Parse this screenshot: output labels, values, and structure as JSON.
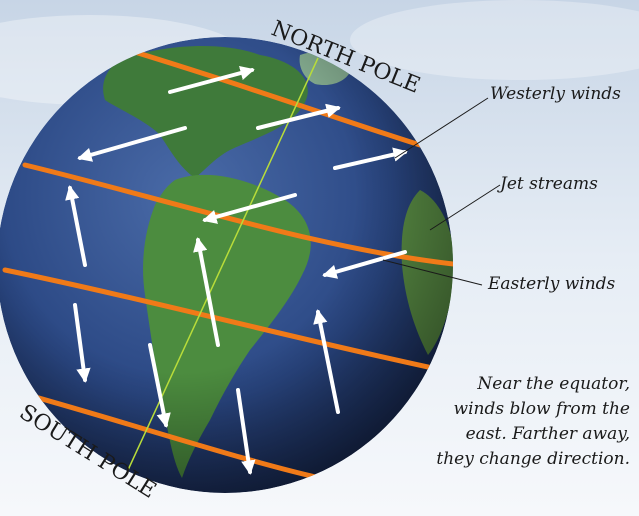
{
  "labels": {
    "north_pole": "NORTH POLE",
    "south_pole": "SOUTH POLE",
    "westerly": "Westerly winds",
    "jet": "Jet streams",
    "easterly": "Easterly winds"
  },
  "caption": {
    "line1": "Near the equator,",
    "line2": "winds blow from the",
    "line3": "east. Farther away,",
    "line4": "they change direction."
  },
  "colors": {
    "ocean": "#2c4a86",
    "land": "#3f7a3a",
    "jet_stream": "#f07a18",
    "wind_arrow": "#ffffff",
    "axis": "#b8dc3a",
    "sky": "#dfe8f1"
  },
  "icons": {
    "wind": "white-arrow",
    "jet": "orange-band"
  }
}
